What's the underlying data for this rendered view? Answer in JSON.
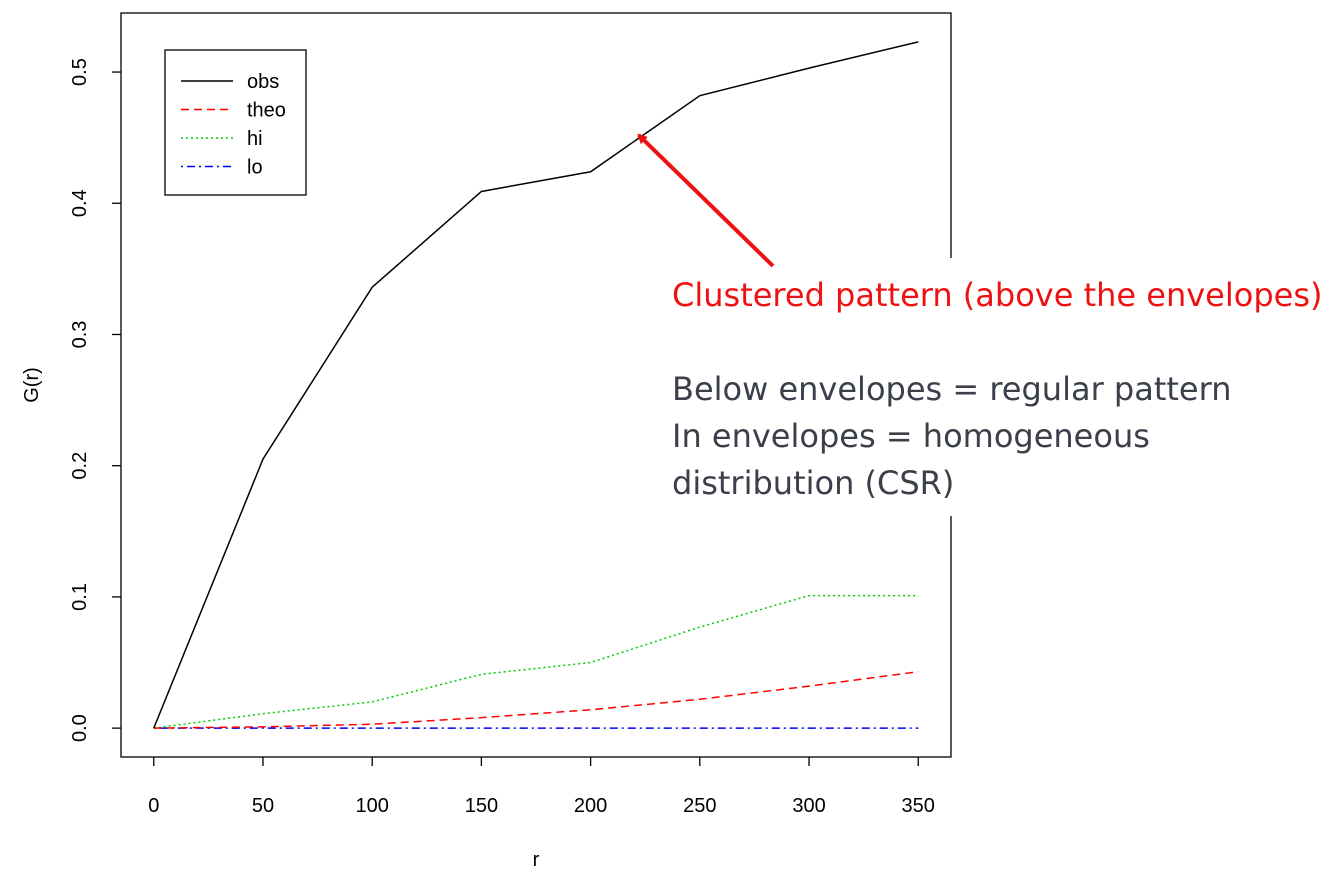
{
  "chart_data": {
    "type": "line",
    "xlabel": "r",
    "ylabel": "G(r)",
    "xlim": [
      -15,
      365
    ],
    "ylim": [
      -0.022,
      0.545
    ],
    "x_ticks": [
      0,
      50,
      100,
      150,
      200,
      250,
      300,
      350
    ],
    "x_tick_labels": [
      "0",
      "50",
      "100",
      "150",
      "200",
      "250",
      "300",
      "350"
    ],
    "y_ticks": [
      0.0,
      0.1,
      0.2,
      0.3,
      0.4,
      0.5
    ],
    "y_tick_labels": [
      "0.0",
      "0.1",
      "0.2",
      "0.3",
      "0.4",
      "0.5"
    ],
    "grid": false,
    "legend_position": "top-left",
    "x": [
      0,
      50,
      100,
      150,
      200,
      250,
      300,
      350
    ],
    "series": [
      {
        "name": "obs",
        "color": "#000000",
        "dash": "solid",
        "values": [
          0.0,
          0.205,
          0.336,
          0.409,
          0.424,
          0.482,
          0.503,
          0.523
        ]
      },
      {
        "name": "theo",
        "color": "#ff0000",
        "dash": "dashed",
        "values": [
          0.0,
          0.001,
          0.003,
          0.008,
          0.014,
          0.022,
          0.032,
          0.043
        ]
      },
      {
        "name": "hi",
        "color": "#00cc00",
        "dash": "dotted",
        "values": [
          0.0,
          0.011,
          0.02,
          0.041,
          0.05,
          0.077,
          0.101,
          0.101
        ]
      },
      {
        "name": "lo",
        "color": "#0000ff",
        "dash": "dotdash",
        "values": [
          0.0,
          0.0,
          0.0,
          0.0,
          0.0,
          0.0,
          0.0,
          0.0
        ]
      }
    ],
    "annotations": {
      "arrow_color": "#ee1111",
      "arrow_target": {
        "x": 222,
        "y": 0.452
      },
      "clustered": "Clustered pattern (above the envelopes)",
      "notes": [
        "Below envelopes = regular pattern",
        "In envelopes = homogeneous",
        "distribution (CSR)"
      ]
    }
  }
}
